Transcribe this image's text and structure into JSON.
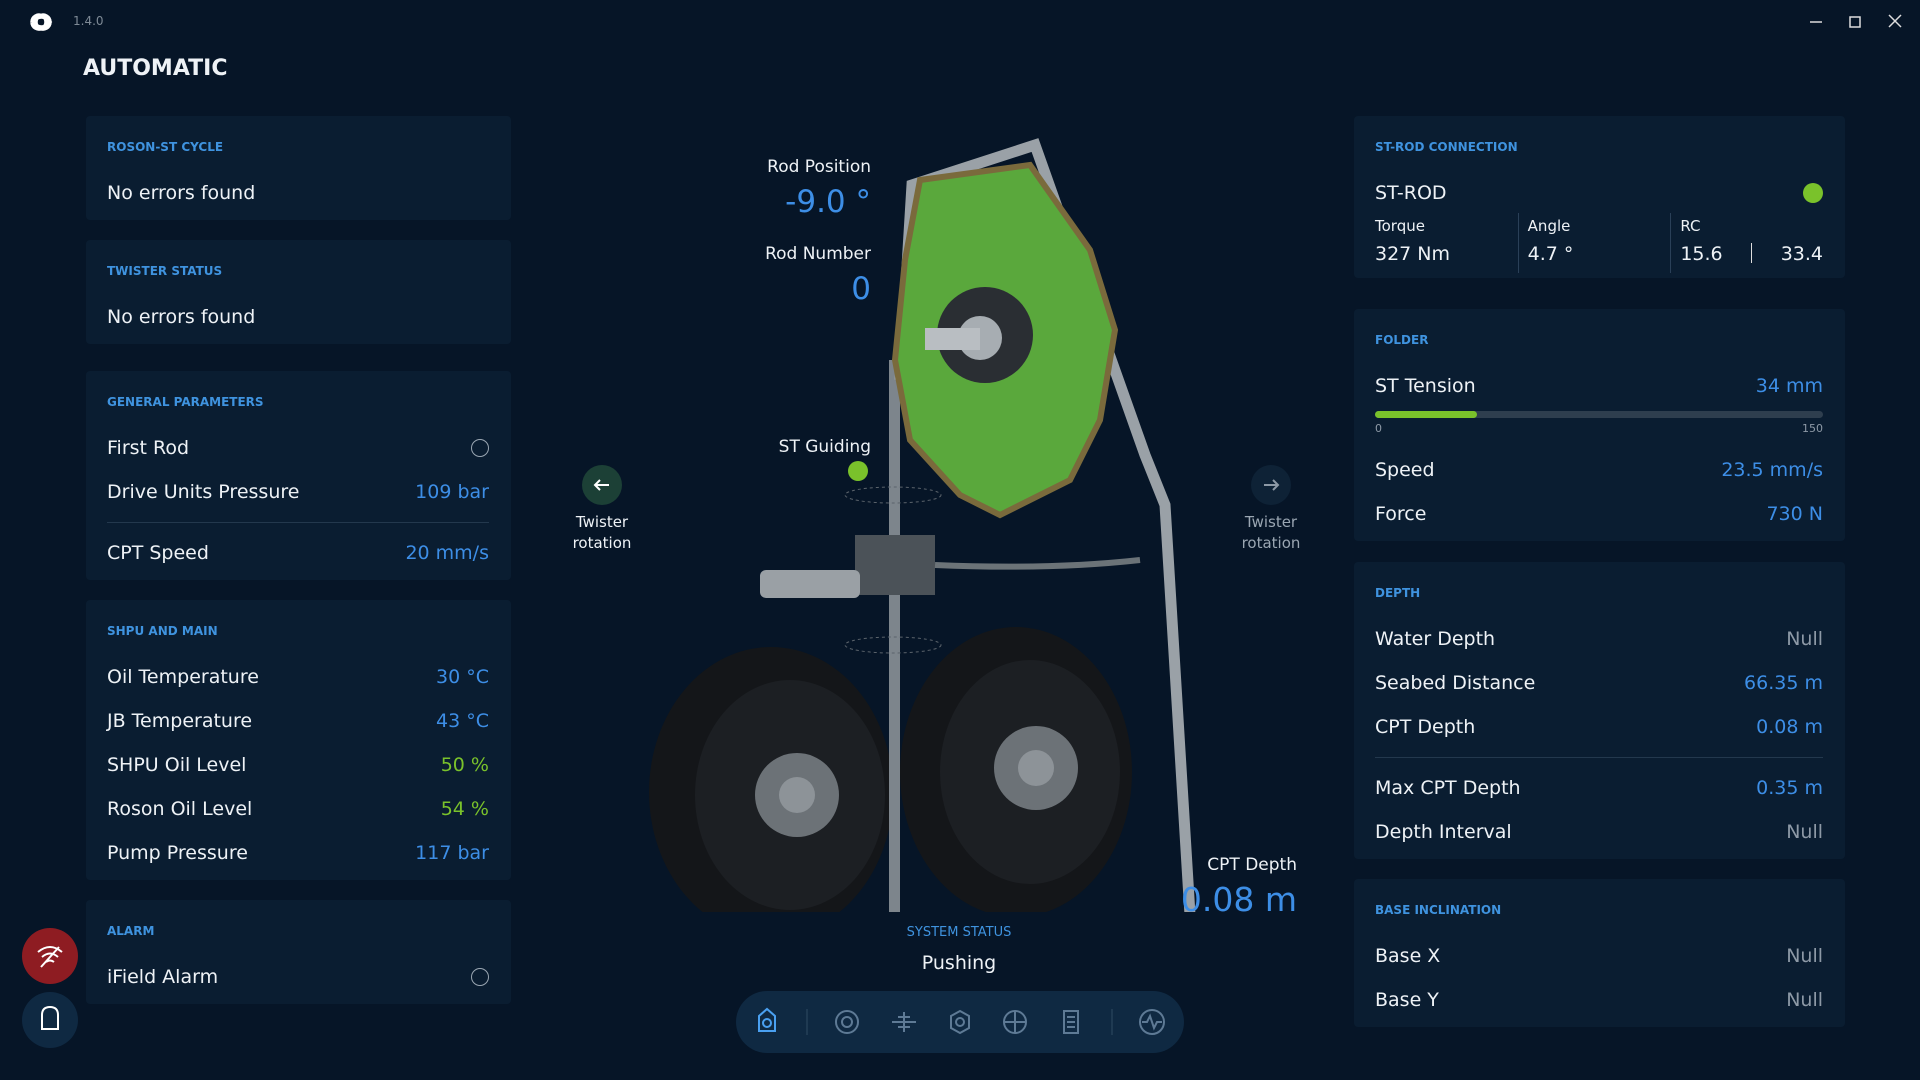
{
  "app": {
    "version": "1.4.0"
  },
  "header": {
    "title": "AUTOMATIC"
  },
  "left_panels": [
    {
      "title": "ROSON-ST CYCLE",
      "message": "No errors found"
    },
    {
      "title": "TWISTER STATUS",
      "message": "No errors found"
    },
    {
      "title": "GENERAL PARAMETERS",
      "groups": [
        [
          {
            "label": "First Rod",
            "checked": false
          },
          {
            "label": "Drive Units Pressure",
            "value": "109 bar",
            "color": "#3d8ee6"
          }
        ],
        [
          {
            "label": "CPT Speed",
            "value": "20 mm/s",
            "color": "#3d8ee6"
          }
        ]
      ]
    },
    {
      "title": "SHPU AND MAIN",
      "groups": [
        [
          {
            "label": "Oil Temperature",
            "value": "30 °C",
            "color": "#3d8ee6"
          },
          {
            "label": "JB Temperature",
            "value": "43 °C",
            "color": "#3d8ee6"
          },
          {
            "label": "SHPU Oil Level",
            "value": "50 %",
            "color": "#7ac22b"
          },
          {
            "label": "Roson Oil Level",
            "value": "54 %",
            "color": "#7ac22b"
          },
          {
            "label": "Pump Pressure",
            "value": "117 bar",
            "color": "#3d8ee6"
          }
        ]
      ]
    },
    {
      "title": "ALARM",
      "groups": [
        [
          {
            "label": "iField Alarm",
            "checked": false
          }
        ]
      ]
    }
  ],
  "center": {
    "rod_position": {
      "label": "Rod Position",
      "value": "-9.0 °"
    },
    "rod_number": {
      "label": "Rod Number",
      "value": "0"
    },
    "st_guiding": {
      "label": "ST Guiding",
      "color": "#7ac22b"
    },
    "twister_left": {
      "label": "Twister rotation"
    },
    "twister_right": {
      "label": "Twister rotation"
    },
    "cpt_depth": {
      "label": "CPT Depth",
      "value": "0.08 m"
    },
    "system_status": {
      "label": "SYSTEM STATUS",
      "value": "Pushing"
    }
  },
  "right_panels": [
    {
      "title": "ST-ROD CONNECTION",
      "status": {
        "label": "ST-ROD",
        "color": "#7ac22b"
      },
      "metrics": [
        {
          "label": "Torque",
          "value": "327 Nm"
        },
        {
          "label": "Angle",
          "value": "4.7 °"
        },
        {
          "label": "RC",
          "values": [
            "15.6",
            "33.4"
          ]
        }
      ]
    },
    {
      "title": "FOLDER",
      "tension": {
        "label": "ST Tension",
        "value": "34 mm",
        "level": 34,
        "min": 0,
        "max": 150,
        "color": "#7ac22b"
      },
      "groups": [
        [
          {
            "label": "Speed",
            "value": "23.5 mm/s",
            "color": "#3d8ee6"
          },
          {
            "label": "Force",
            "value": "730 N",
            "color": "#3d8ee6"
          }
        ]
      ]
    },
    {
      "title": "DEPTH",
      "groups": [
        [
          {
            "label": "Water Depth",
            "value": "Null",
            "color": "#8d99a6"
          },
          {
            "label": "Seabed Distance",
            "value": "66.35 m",
            "color": "#3d8ee6"
          },
          {
            "label": "CPT Depth",
            "value": "0.08 m",
            "color": "#3d8ee6"
          }
        ],
        [
          {
            "label": "Max CPT Depth",
            "value": "0.35 m",
            "color": "#3d8ee6"
          },
          {
            "label": "Depth Interval",
            "value": "Null",
            "color": "#8d99a6"
          }
        ]
      ]
    },
    {
      "title": "BASE INCLINATION",
      "groups": [
        [
          {
            "label": "Base X",
            "value": "Null",
            "color": "#8d99a6"
          },
          {
            "label": "Base Y",
            "value": "Null",
            "color": "#8d99a6"
          }
        ]
      ]
    }
  ]
}
